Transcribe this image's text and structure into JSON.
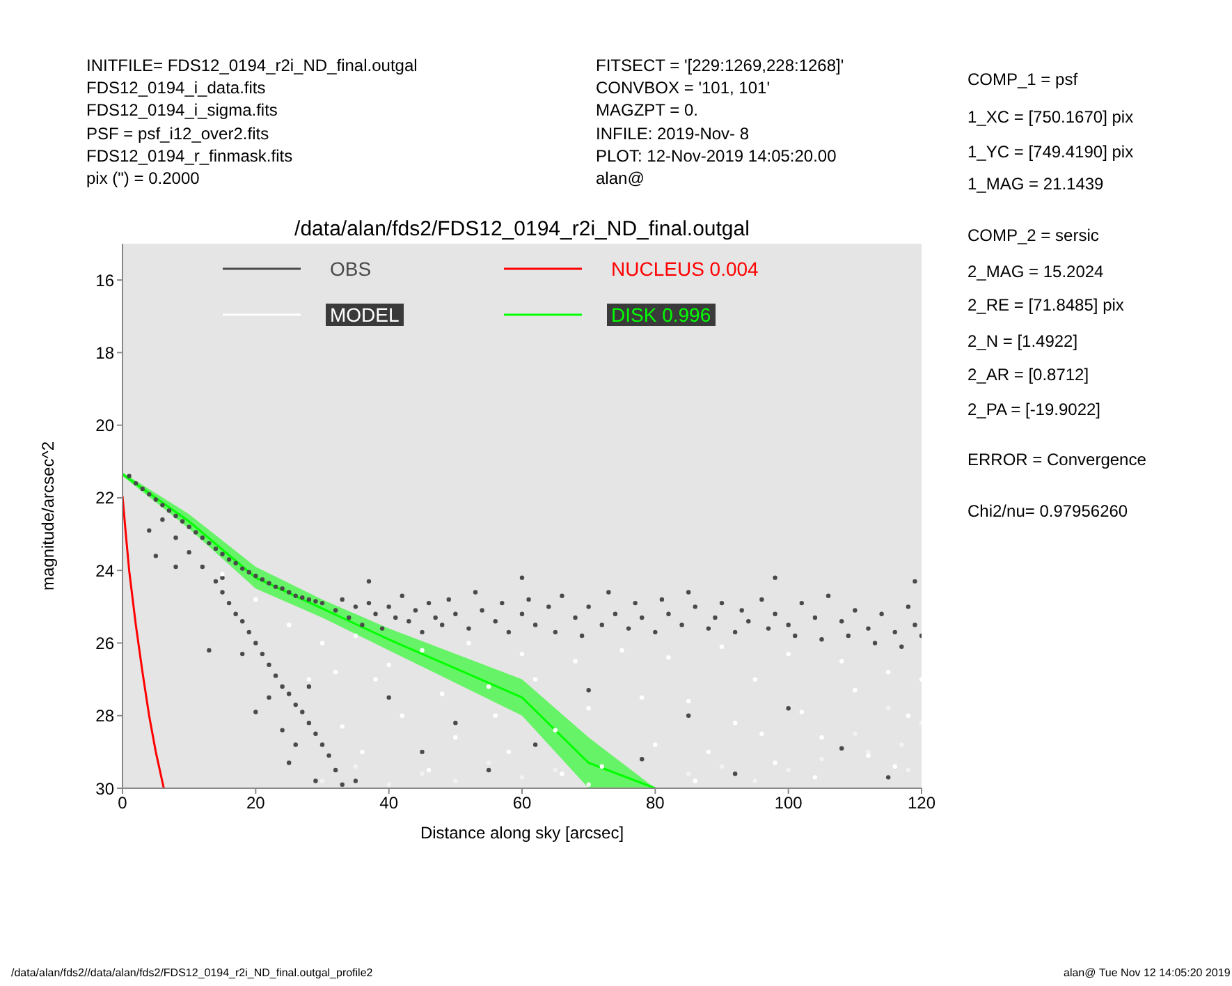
{
  "chart_data": {
    "type": "scatter",
    "title": "/data/alan/fds2/FDS12_0194_r2i_ND_final.outgal",
    "xlabel": "Distance along sky [arcsec]",
    "ylabel": "magnitude/arcsec^2",
    "xlim": [
      0,
      120
    ],
    "xticks": [
      0,
      20,
      40,
      60,
      80,
      100,
      120
    ],
    "ylim": [
      30,
      15
    ],
    "yticks": [
      16,
      18,
      20,
      22,
      24,
      26,
      28,
      30
    ],
    "grid": false,
    "legend": "top left",
    "annotations": [
      "INITFILE= FDS12_0194_r2i_ND_final.outgal",
      "FDS12_0194_i_data.fits",
      "FDS12_0194_i_sigma.fits",
      "PSF = psf_i12_over2.fits",
      "FDS12_0194_r_finmask.fits",
      "pix (\") = 0.2000",
      "FITSECT = '[229:1269,228:1268]'",
      "CONVBOX = '101, 101'",
      "MAGZPT = 0.",
      "INFILE: 2019-Nov- 8",
      "PLOT: 12-Nov-2019 14:05:20.00",
      "alan@",
      "COMP_1 = psf",
      "1_XC = [750.1670] pix",
      "1_YC = [749.4190] pix",
      "1_MAG = 21.1439",
      "COMP_2 = sersic",
      "2_MAG = 15.2024",
      "2_RE = [71.8485] pix",
      "2_N = [1.4922]",
      "2_AR = [0.8712]",
      "2_PA = [-19.9022]",
      "ERROR = Convergence",
      "Chi2/nu= 0.97956260",
      "/data/alan/fds2//data/alan/fds2/FDS12_0194_r2i_ND_final.outgal_profile2",
      "alan@ Tue Nov 12 14:05:20 2019"
    ],
    "series": [
      {
        "name": "OBS",
        "color": "#4a4a4a",
        "x": [
          1,
          2,
          3,
          4,
          5,
          6,
          7,
          8,
          9,
          10,
          11,
          12,
          13,
          14,
          15,
          16,
          17,
          18,
          19,
          20,
          21,
          22,
          23,
          24,
          25,
          26,
          27,
          28,
          29,
          30,
          32,
          33,
          34,
          35,
          36,
          37,
          38,
          39,
          40,
          41,
          42,
          43,
          44,
          45,
          46,
          47,
          48,
          49,
          50,
          52,
          53,
          54,
          56,
          57,
          58,
          60,
          61,
          62,
          64,
          65,
          66,
          68,
          69,
          70,
          72,
          73,
          74,
          76,
          77,
          78,
          80,
          81,
          82,
          84,
          85,
          86,
          88,
          89,
          90,
          92,
          93,
          94,
          96,
          97,
          98,
          100,
          101,
          102,
          104,
          105,
          106,
          108,
          109,
          110,
          112,
          113,
          114,
          116,
          117,
          118,
          119,
          120,
          4,
          5,
          8,
          15,
          37,
          60,
          98,
          119,
          6,
          8,
          10,
          12,
          14,
          15,
          16,
          17,
          18,
          19,
          20,
          21,
          22,
          23,
          24,
          25,
          26,
          27,
          28,
          29,
          30,
          31,
          32,
          33,
          18,
          22,
          24,
          26,
          28,
          20,
          25,
          29,
          13,
          40,
          45,
          50,
          55,
          62,
          70,
          78,
          85,
          92,
          100,
          108,
          115,
          35
        ],
        "values": [
          21.4,
          21.6,
          21.75,
          21.9,
          22.05,
          22.2,
          22.35,
          22.5,
          22.65,
          22.8,
          22.95,
          23.1,
          23.25,
          23.4,
          23.55,
          23.7,
          23.8,
          23.95,
          24.05,
          24.15,
          24.25,
          24.35,
          24.45,
          24.5,
          24.6,
          24.7,
          24.75,
          24.8,
          24.85,
          24.9,
          25.1,
          24.8,
          25.3,
          25.0,
          25.5,
          24.9,
          25.2,
          25.6,
          25.0,
          25.3,
          24.7,
          25.4,
          25.1,
          25.7,
          24.9,
          25.3,
          25.5,
          24.8,
          25.2,
          25.6,
          24.6,
          25.1,
          25.4,
          24.9,
          25.7,
          25.2,
          24.8,
          25.5,
          25.0,
          25.7,
          24.7,
          25.3,
          25.8,
          25.0,
          25.5,
          24.6,
          25.2,
          25.6,
          24.9,
          25.3,
          25.7,
          24.8,
          25.2,
          25.5,
          24.6,
          25.0,
          25.6,
          25.3,
          24.9,
          25.7,
          25.1,
          25.4,
          24.8,
          25.6,
          25.2,
          25.5,
          25.8,
          24.9,
          25.3,
          25.9,
          24.7,
          25.4,
          25.8,
          25.1,
          25.6,
          26.0,
          25.2,
          25.7,
          26.1,
          25.0,
          25.5,
          25.8,
          22.9,
          23.6,
          23.9,
          24.2,
          24.3,
          24.2,
          24.2,
          24.3,
          22.6,
          23.1,
          23.5,
          23.9,
          24.3,
          24.6,
          24.9,
          25.2,
          25.4,
          25.7,
          26.0,
          26.3,
          26.6,
          26.9,
          27.2,
          27.4,
          27.7,
          27.9,
          28.2,
          28.5,
          28.8,
          29.1,
          29.5,
          29.9,
          26.3,
          27.5,
          28.4,
          28.8,
          27.2,
          27.9,
          29.3,
          29.8,
          26.2,
          27.5,
          29.0,
          28.2,
          29.5,
          28.8,
          27.3,
          29.2,
          28.0,
          29.6,
          27.8,
          28.9,
          29.7,
          29.8
        ]
      },
      {
        "name": "MODEL",
        "color": "#ffffff",
        "x": [
          15,
          20,
          25,
          30,
          32,
          35,
          38,
          40,
          42,
          45,
          48,
          50,
          52,
          55,
          58,
          60,
          62,
          65,
          68,
          70,
          72,
          75,
          78,
          80,
          82,
          85,
          88,
          90,
          92,
          95,
          98,
          100,
          102,
          105,
          108,
          110,
          112,
          115,
          118,
          120,
          36,
          46,
          56,
          66,
          86,
          96,
          104,
          116,
          28,
          33
        ],
        "values": [
          24.1,
          24.8,
          25.5,
          26.0,
          26.8,
          25.8,
          27.0,
          26.6,
          28.0,
          26.2,
          27.4,
          28.6,
          26.0,
          27.2,
          29.0,
          26.3,
          27.0,
          28.4,
          26.5,
          27.8,
          29.4,
          26.2,
          27.5,
          28.8,
          26.4,
          27.6,
          29.0,
          26.1,
          28.2,
          27.0,
          29.3,
          26.3,
          27.9,
          28.6,
          26.5,
          27.3,
          29.1,
          26.8,
          28.0,
          27.0,
          29.0,
          29.5,
          28.0,
          29.6,
          29.8,
          28.5,
          29.7,
          29.4,
          27.0,
          28.3
        ]
      },
      {
        "color": "#f2f2f2",
        "x": [
          30,
          35,
          40,
          45,
          50,
          55,
          60,
          65,
          70,
          85,
          90,
          95,
          100,
          105,
          110,
          112,
          115,
          117,
          118,
          120
        ],
        "values": [
          29.8,
          29.4,
          29.9,
          29.6,
          29.8,
          29.3,
          29.7,
          29.5,
          29.9,
          29.6,
          29.4,
          29.8,
          29.5,
          29.2,
          28.5,
          29.0,
          27.8,
          28.8,
          29.5,
          28.2
        ]
      },
      {
        "name": "NUCLEUS 0.004",
        "type": "line",
        "color": "#ff0000",
        "x": [
          0,
          0.5,
          1,
          2,
          3,
          4,
          5,
          6.2
        ],
        "values": [
          21.95,
          23.0,
          24.0,
          25.5,
          26.8,
          28.0,
          29.0,
          30.0
        ]
      },
      {
        "name": "DISK 0.996",
        "type": "line",
        "color": "#00ff00",
        "x": [
          0,
          10,
          20,
          30,
          40,
          50,
          60,
          70,
          75,
          80
        ],
        "values": [
          21.35,
          22.65,
          24.2,
          25.05,
          25.9,
          26.7,
          27.5,
          29.3,
          29.65,
          30.0
        ],
        "lower": [
          21.3,
          22.45,
          23.9,
          24.8,
          25.6,
          26.3,
          27.0,
          28.6,
          29.3,
          30.0
        ],
        "upper": [
          21.4,
          22.85,
          24.5,
          25.3,
          26.2,
          27.1,
          28.0,
          30.0,
          30.0,
          30.0
        ]
      }
    ]
  }
}
